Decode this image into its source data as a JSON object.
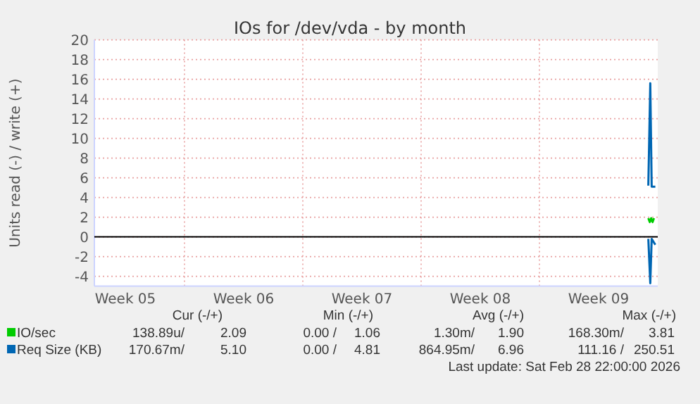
{
  "chart_data": {
    "type": "line",
    "title": "IOs for /dev/vda - by month",
    "ylabel": "Units read (-) / write (+)",
    "xlim": [
      "2026-01-27T16:00",
      "2026-03-02T00:00"
    ],
    "xticks": [
      {
        "value": "2026-01-29T12:00",
        "label": "Week 05"
      },
      {
        "value": "2026-02-02T00:00",
        "label": null
      },
      {
        "value": "2026-02-05T12:00",
        "label": "Week 06"
      },
      {
        "value": "2026-02-09T00:00",
        "label": null
      },
      {
        "value": "2026-02-12T12:00",
        "label": "Week 07"
      },
      {
        "value": "2026-02-16T00:00",
        "label": null
      },
      {
        "value": "2026-02-19T12:00",
        "label": "Week 08"
      },
      {
        "value": "2026-02-23T00:00",
        "label": null
      },
      {
        "value": "2026-02-26T12:00",
        "label": "Week 09"
      }
    ],
    "ylim": [
      -5,
      20
    ],
    "yticks": [
      -4,
      -2,
      0,
      2,
      4,
      6,
      8,
      10,
      12,
      14,
      16,
      18,
      20
    ],
    "grid": true,
    "legend": "bottom",
    "line_style": "solid",
    "marker": "none",
    "ref_lines": [
      {
        "axis": "y",
        "value": 0,
        "color": "#000000"
      }
    ],
    "series": [
      {
        "name": "IO/sec",
        "color": "#00cc00",
        "x": [
          "2026-03-01T10:36",
          "2026-03-01T12:40",
          "2026-03-01T14:40",
          "2026-03-01T16:40",
          "2026-03-01T18:40"
        ],
        "values": [
          1.9,
          1.5,
          1.9,
          1.5,
          1.9
        ]
      },
      {
        "name": "Req Size (KB)",
        "color": "#0066b3",
        "x": [
          "2026-03-01T10:36",
          "2026-03-01T13:24",
          "2026-03-01T15:24",
          "2026-03-01T20:34"
        ],
        "values": [
          5.2,
          15.6,
          5.1,
          5.1
        ]
      },
      {
        "color": "#0066b3",
        "x": [
          "2026-03-01T10:36",
          "2026-03-01T13:24",
          "2026-03-01T15:24",
          "2026-03-01T20:34"
        ],
        "values": [
          -0.2,
          -4.7,
          -0.2,
          -0.8
        ]
      }
    ],
    "annotations": [
      "Cur (-/+)",
      "Min (-/+)",
      "Avg (-/+)",
      "Max (-/+)",
      "138.89u/",
      "2.09",
      "0.00 /",
      "1.06",
      "1.30m/",
      "1.90",
      "168.30m/",
      "3.81",
      "170.67m/",
      "5.10",
      "0.00 /",
      "4.81",
      "864.95m/",
      "6.96",
      "111.16 /",
      "250.51",
      "Last update: Sat Feb 28 22:00:00 2026"
    ]
  }
}
